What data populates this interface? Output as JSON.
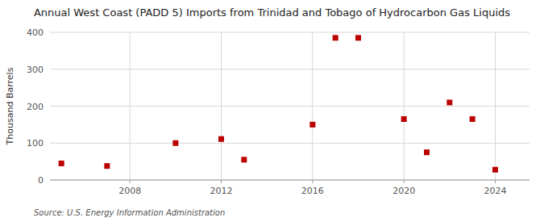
{
  "chart_data": {
    "type": "scatter",
    "title": "Annual West Coast (PADD 5) Imports from Trinidad and Tobago of Hydrocarbon Gas Liquids",
    "ylabel": "Thousand Barrels",
    "source": "Source: U.S. Energy Information Administration",
    "x": [
      2005,
      2007,
      2010,
      2012,
      2013,
      2016,
      2017,
      2018,
      2020,
      2021,
      2022,
      2023,
      2024
    ],
    "values": [
      45,
      38,
      100,
      111,
      55,
      150,
      385,
      385,
      165,
      75,
      210,
      165,
      28
    ],
    "color": "#bb0000",
    "marker": "square",
    "xlim": [
      2004.5,
      2025.5
    ],
    "ylim": [
      0,
      400
    ],
    "xticks": [
      2008,
      2012,
      2016,
      2020,
      2024
    ],
    "yticks": [
      0,
      100,
      200,
      300,
      400
    ],
    "grid": true
  }
}
